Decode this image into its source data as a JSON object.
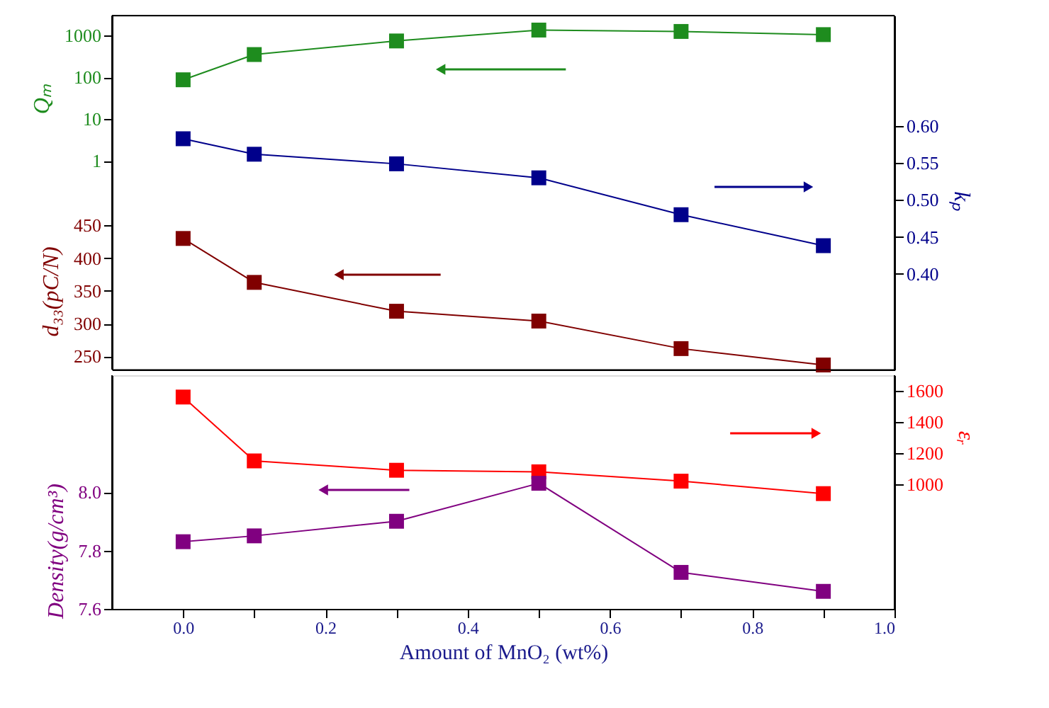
{
  "chart_data": [
    {
      "type": "line",
      "x": [
        0.0,
        0.1,
        0.3,
        0.5,
        0.7,
        0.9
      ],
      "xlim": [
        -0.1,
        1.0
      ],
      "tick_labels": "y",
      "ylabel": "Qₘ",
      "ylim": [
        1e-05,
        3000
      ],
      "yticks": [
        1,
        10,
        100,
        1000
      ],
      "log": "y",
      "y2label": "kₚ",
      "y2lim": [
        0.27,
        0.75
      ],
      "y2ticks": [
        {
          "value": 0.4,
          "label": "0.40"
        },
        0.45,
        {
          "value": 0.5,
          "label": "0.50"
        },
        0.55,
        {
          "value": 0.6,
          "label": "0.60"
        }
      ],
      "y3label": "d₃₃(pC/N)",
      "y3lim": [
        230,
        770
      ],
      "y3ticks": [
        250,
        300,
        350,
        400,
        450
      ],
      "marker": "square",
      "series": [
        {
          "axis": "y",
          "color": "#1e8c1e",
          "values": [
            87,
            350,
            740,
            1350,
            1250,
            1050
          ]
        },
        {
          "axis": "y2",
          "color": "#00008b",
          "values": [
            0.583,
            0.562,
            0.549,
            0.53,
            0.48,
            0.438
          ]
        },
        {
          "axis": "y3",
          "color": "#800000",
          "values": [
            430,
            363,
            319,
            304,
            262,
            237
          ]
        }
      ]
    },
    {
      "type": "line",
      "xlabel": "Amount of MnO₂ (wt%)",
      "x": [
        0.0,
        0.1,
        0.3,
        0.5,
        0.7,
        0.9
      ],
      "xlim": [
        -0.1,
        1.0
      ],
      "xticks": [
        {
          "value": 0.0,
          "label": "0.0"
        },
        {
          "value": 0.1,
          "label": null
        },
        0.2,
        {
          "value": 0.3,
          "label": null
        },
        0.4,
        {
          "value": 0.5,
          "label": null
        },
        0.6,
        {
          "value": 0.7,
          "label": null
        },
        0.8,
        {
          "value": 0.9,
          "label": null
        },
        {
          "value": 1.0,
          "label": "1.0"
        }
      ],
      "ylabel": "Density(g/cm³)",
      "ylim": [
        7.6,
        8.4
      ],
      "yticks": [
        7.6,
        7.8,
        {
          "value": 8.0,
          "label": "8.0"
        }
      ],
      "y2label": "εᵣ",
      "y2lim": [
        200,
        1700
      ],
      "y2ticks": [
        1000,
        1200,
        1400,
        1600
      ],
      "marker": "square",
      "series": [
        {
          "axis": "y2",
          "color": "#ff0000",
          "values": [
            1560,
            1150,
            1090,
            1080,
            1020,
            940
          ]
        },
        {
          "axis": "y",
          "color": "#800080",
          "values": [
            7.83,
            7.85,
            7.9,
            8.03,
            7.725,
            7.66
          ]
        }
      ]
    }
  ]
}
